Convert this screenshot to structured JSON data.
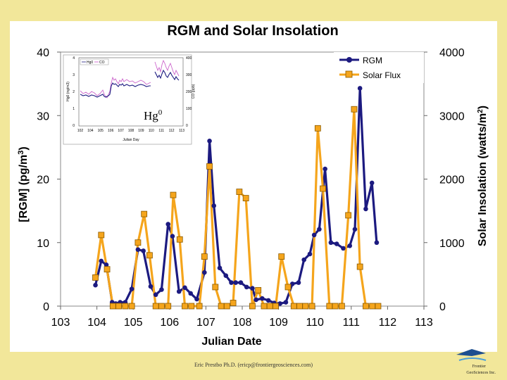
{
  "chart_data": {
    "type": "line",
    "title": "RGM and Solar Insolation",
    "xlabel": "Julian Date",
    "ylabel_left": "[RGM] (pg/m3)",
    "ylabel_right": "Solar Insolation (watts/m2)",
    "xlim": [
      103,
      113
    ],
    "ylim_left": [
      0,
      40
    ],
    "ylim_right": [
      0,
      4000
    ],
    "x_ticks": [
      "103",
      "104",
      "105",
      "106",
      "107",
      "108",
      "109",
      "110",
      "111",
      "112",
      "113"
    ],
    "y_left_ticks": [
      "0",
      "10",
      "20",
      "30",
      "40"
    ],
    "y_right_ticks": [
      "0",
      "1000",
      "2000",
      "3000",
      "4000"
    ],
    "legend_position": "top-right",
    "series": [
      {
        "name": "RGM",
        "axis": "left",
        "color": "#1c1a80",
        "marker": "circle",
        "x": [
          103.96,
          104.12,
          104.26,
          104.42,
          104.52,
          104.64,
          104.78,
          104.96,
          105.13,
          105.28,
          105.48,
          105.62,
          105.78,
          105.96,
          106.08,
          106.26,
          106.42,
          106.58,
          106.75,
          106.96,
          107.1,
          107.22,
          107.38,
          107.55,
          107.7,
          107.82,
          107.96,
          108.12,
          108.28,
          108.38,
          108.55,
          108.72,
          108.88,
          109.04,
          109.2,
          109.38,
          109.55,
          109.7,
          109.86,
          109.98,
          110.12,
          110.28,
          110.44,
          110.6,
          110.78,
          110.96,
          111.1,
          111.24,
          111.4,
          111.57,
          111.7
        ],
        "y": [
          3.3,
          7.1,
          6.5,
          0.6,
          0.4,
          0.6,
          0.6,
          2.7,
          8.9,
          8.7,
          3.1,
          1.8,
          2.6,
          12.9,
          11.0,
          2.3,
          2.9,
          2.0,
          1.1,
          5.3,
          26.0,
          15.8,
          6.0,
          4.8,
          3.7,
          3.7,
          3.7,
          3.0,
          2.8,
          1.0,
          1.2,
          0.9,
          0.5,
          0.4,
          0.6,
          3.5,
          3.7,
          7.3,
          8.2,
          11.2,
          12.1,
          21.6,
          10.0,
          9.8,
          9.1,
          9.5,
          12.1,
          34.3,
          15.3,
          19.4,
          10.0
        ]
      },
      {
        "name": "Solar Flux",
        "axis": "right",
        "color": "#f5a51c",
        "marker": "square",
        "x": [
          103.96,
          104.12,
          104.28,
          104.44,
          104.6,
          104.78,
          104.96,
          105.13,
          105.3,
          105.45,
          105.62,
          105.78,
          105.96,
          106.1,
          106.28,
          106.42,
          106.6,
          106.82,
          106.96,
          107.1,
          107.26,
          107.42,
          107.58,
          107.75,
          107.92,
          108.1,
          108.28,
          108.44,
          108.6,
          108.76,
          108.92,
          109.08,
          109.26,
          109.42,
          109.58,
          109.74,
          109.92,
          110.08,
          110.22,
          110.4,
          110.56,
          110.74,
          110.92,
          111.08,
          111.24,
          111.4,
          111.58,
          111.74
        ],
        "y": [
          450,
          1120,
          580,
          0,
          0,
          0,
          0,
          1000,
          1450,
          800,
          0,
          0,
          0,
          1750,
          1050,
          0,
          0,
          0,
          780,
          2200,
          300,
          0,
          0,
          50,
          1800,
          1700,
          0,
          250,
          0,
          0,
          0,
          780,
          300,
          0,
          0,
          0,
          0,
          2800,
          1850,
          0,
          0,
          0,
          1430,
          3100,
          620,
          0,
          0,
          0
        ]
      }
    ],
    "inset": {
      "legend": [
        "Hg0",
        "CO"
      ],
      "xlabel": "Julian Day",
      "ylabel_left": "Hg0 (ng/m3)",
      "ylabel_right": "CO (ppb)",
      "x_ticks": [
        "102",
        "104",
        "105",
        "106",
        "107",
        "108",
        "109",
        "110",
        "111",
        "112",
        "113"
      ],
      "y_left_ticks": [
        "4",
        "3",
        "2",
        "1",
        "0"
      ],
      "y_right_ticks": [
        "400",
        "300",
        "200",
        "100",
        "0"
      ],
      "annotation": "Hg"
    }
  },
  "footer": {
    "credit": "Eric Prestbo Ph.D. (ericp@frontiergeosciences.com)",
    "logo_line1": "Frontier",
    "logo_line2": "GeoSciences Inc."
  }
}
